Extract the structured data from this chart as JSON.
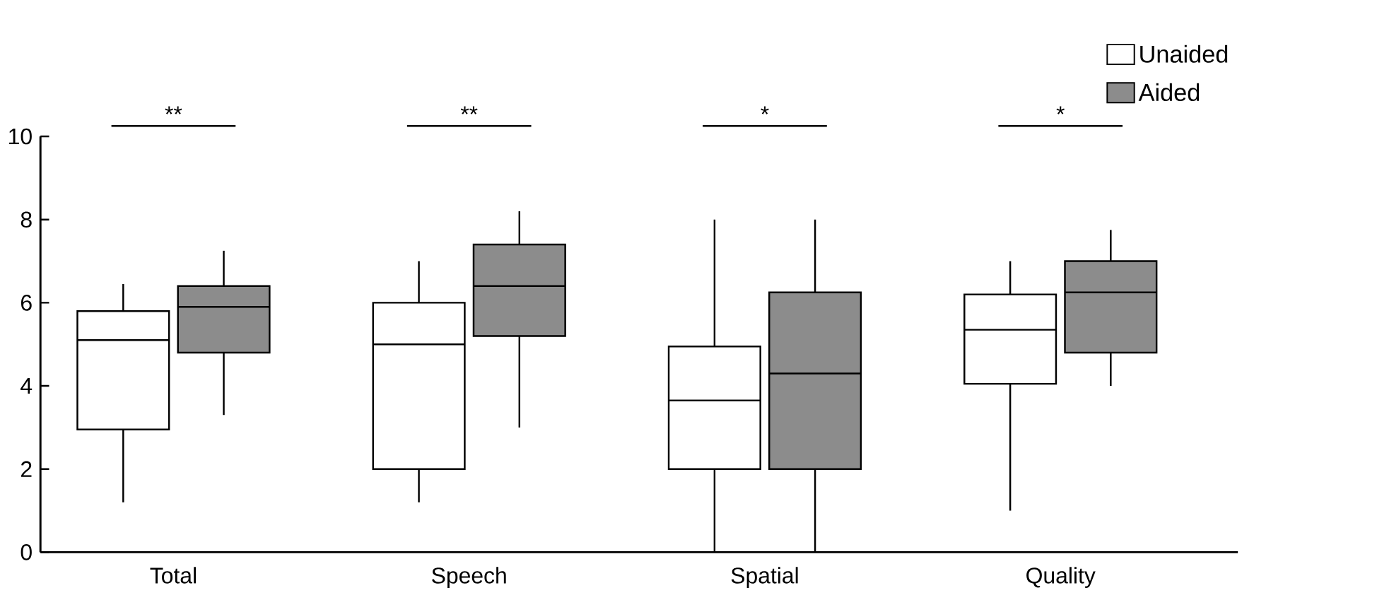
{
  "chart_data": {
    "type": "box",
    "categories": [
      "Total",
      "Speech",
      "Spatial",
      "Quality"
    ],
    "series": [
      {
        "name": "Unaided",
        "color": "#ffffff",
        "boxes": [
          {
            "low": 1.2,
            "q1": 2.95,
            "median": 5.1,
            "q3": 5.8,
            "high": 6.45
          },
          {
            "low": 1.2,
            "q1": 2.0,
            "median": 5.0,
            "q3": 6.0,
            "high": 7.0
          },
          {
            "low": 0,
            "q1": 2.0,
            "median": 3.65,
            "q3": 4.95,
            "high": 8.0
          },
          {
            "low": 1.0,
            "q1": 4.05,
            "median": 5.35,
            "q3": 6.2,
            "high": 7.0
          }
        ]
      },
      {
        "name": "Aided",
        "color": "#8c8c8c",
        "boxes": [
          {
            "low": 3.3,
            "q1": 4.8,
            "median": 5.9,
            "q3": 6.4,
            "high": 7.25
          },
          {
            "low": 3.0,
            "q1": 5.2,
            "median": 6.4,
            "q3": 7.4,
            "high": 8.2
          },
          {
            "low": 0,
            "q1": 2.0,
            "median": 4.3,
            "q3": 6.25,
            "high": 8.0
          },
          {
            "low": 4.0,
            "q1": 4.8,
            "median": 6.25,
            "q3": 7.0,
            "high": 7.75
          }
        ]
      }
    ],
    "ylim": [
      0,
      10
    ],
    "yticks": [
      0,
      2,
      4,
      6,
      8,
      10
    ],
    "grid": false,
    "legend": "top right",
    "annotations": [
      "**",
      "**",
      "*",
      "*"
    ]
  }
}
